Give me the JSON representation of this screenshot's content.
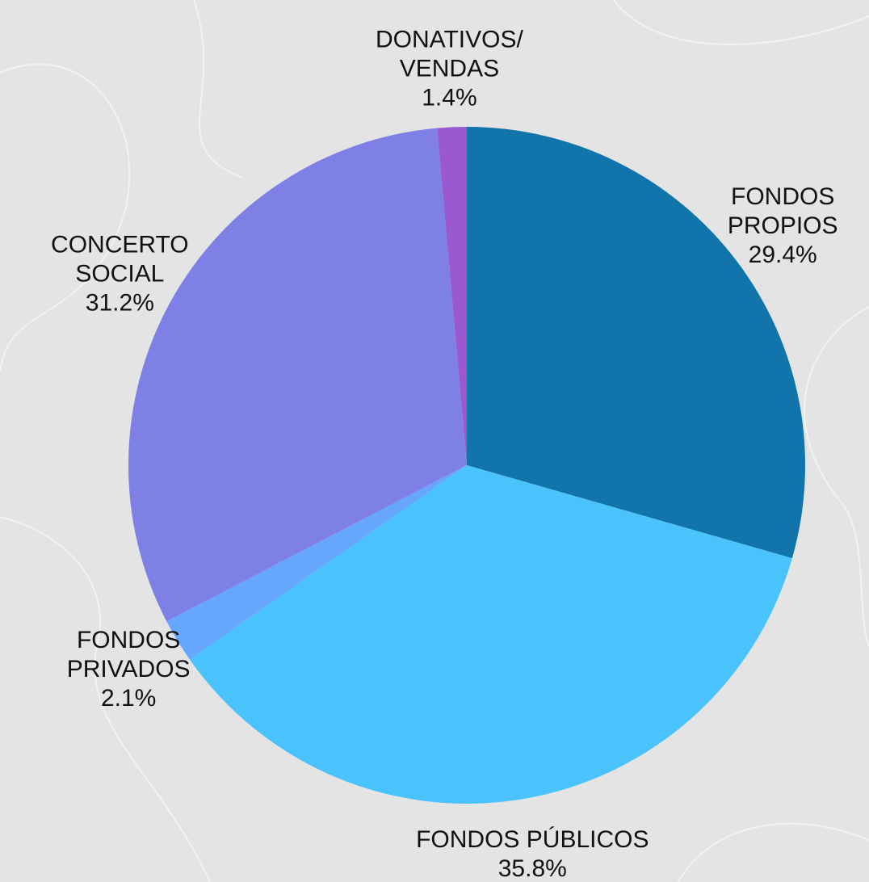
{
  "chart_data": {
    "type": "pie",
    "categories": [
      [
        "FONDOS",
        "PROPIOS"
      ],
      [
        "FONDOS PÚBLICOS"
      ],
      [
        "FONDOS",
        "PRIVADOS"
      ],
      [
        "CONCERTO",
        "SOCIAL"
      ],
      [
        "DONATIVOS/",
        "VENDAS"
      ]
    ],
    "values": [
      29.4,
      35.8,
      2.1,
      31.2,
      1.4
    ],
    "value_labels": [
      "29.4%",
      "35.8%",
      "2.1%",
      "31.2%",
      "1.4%"
    ],
    "colors": [
      "#1174aa",
      "#4ac3fd",
      "#66a6fc",
      "#7e80e6",
      "#9b59d0"
    ]
  }
}
